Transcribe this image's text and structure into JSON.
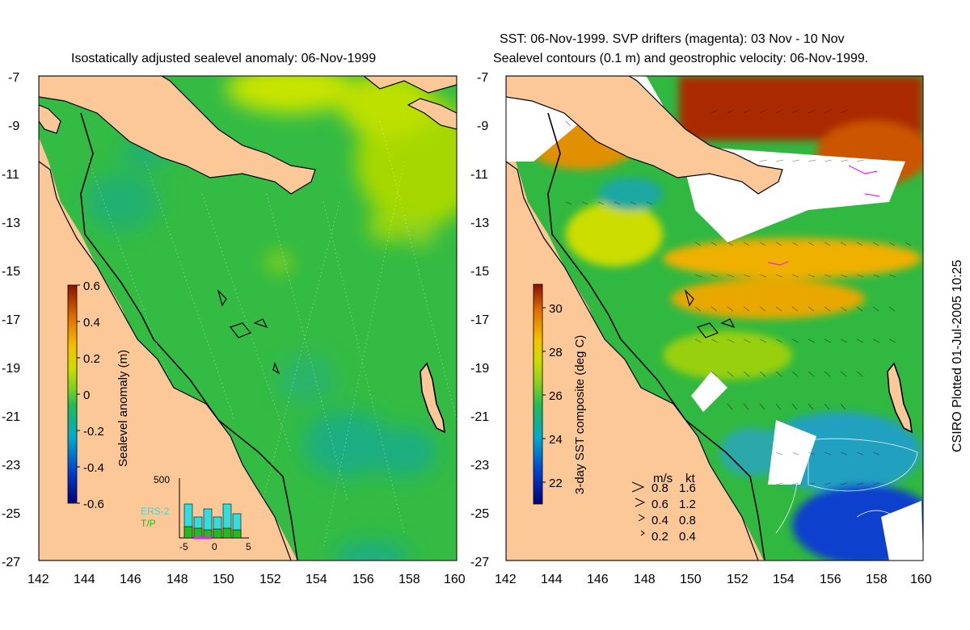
{
  "left_panel": {
    "title": "Isostatically adjusted sealevel anomaly: 06-Nov-1999",
    "colorbar": {
      "label": "Sealevel anomaly (m)",
      "ticks": [
        "0.6",
        "0.4",
        "0.2",
        "0",
        "-0.2",
        "-0.4",
        "-0.6"
      ],
      "range": [
        -0.6,
        0.6
      ]
    },
    "histogram": {
      "ymax_label": "500",
      "xticks": [
        "-5",
        "0",
        "5"
      ],
      "legend": [
        {
          "label": "ERS-2",
          "color": "#33dddd"
        },
        {
          "label": "T/P",
          "color": "#22bb22"
        }
      ]
    }
  },
  "right_panel": {
    "title_line1": "SST: 06-Nov-1999. SVP drifters (magenta): 03 Nov - 10 Nov",
    "title_line2": "Sealevel contours (0.1 m) and geostrophic velocity: 06-Nov-1999.",
    "colorbar": {
      "label": "3-day SST composite (deg C)",
      "ticks": [
        "30",
        "28",
        "26",
        "24",
        "22"
      ],
      "range": [
        21,
        31
      ]
    },
    "velocity_key": {
      "header": [
        "m/s",
        "kt"
      ],
      "rows": [
        [
          "0.8",
          "1.6"
        ],
        [
          "0.6",
          "1.2"
        ],
        [
          "0.4",
          "0.8"
        ],
        [
          "0.2",
          "0.4"
        ]
      ]
    }
  },
  "axes": {
    "lat_ticks": [
      "-7",
      "-9",
      "-11",
      "-13",
      "-15",
      "-17",
      "-19",
      "-21",
      "-23",
      "-25",
      "-27"
    ],
    "lon_ticks": [
      "142",
      "144",
      "146",
      "148",
      "150",
      "152",
      "154",
      "156",
      "158",
      "160"
    ]
  },
  "credit": "CSIRO Plotted 01-Jul-2005 10:25",
  "colors": {
    "land": "#fcc898",
    "ocean_anomaly": "#33bb44",
    "sst_warm": "#bb3300",
    "cloud": "#ffffff"
  }
}
